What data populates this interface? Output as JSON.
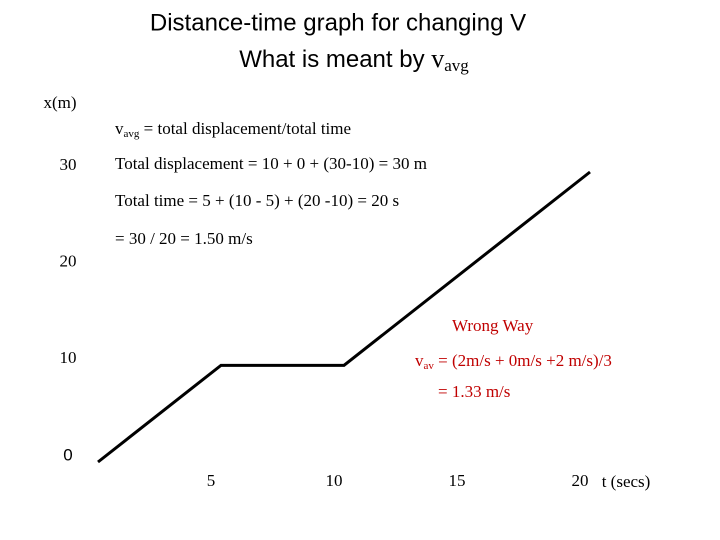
{
  "chart_data": {
    "type": "line",
    "title": "Distance-time graph for changing V",
    "subtitle": {
      "text": "What is meant by ",
      "symbol": "v",
      "sub": "avg"
    },
    "y_label": "x(m)",
    "x_label": "t (secs)",
    "x": [
      0,
      5,
      10,
      20
    ],
    "series": [
      {
        "color": "#000000",
        "values": [
          0,
          10,
          10,
          30
        ]
      }
    ],
    "xlim": [
      0,
      20
    ],
    "ylim": [
      0,
      30
    ],
    "xticks": [
      5,
      10,
      15,
      20
    ],
    "yticks": [
      0,
      10,
      20,
      30
    ],
    "annotations": [
      {
        "text": "v",
        "sub": "avg",
        "rest": " = total displacement/total time",
        "color": "#000000"
      },
      {
        "text": "Total displacement = 10 + 0 + (30-10) = 30 m",
        "color": "#000000"
      },
      {
        "text": "Total time = 5 + (10 - 5) + (20 -10) =  20 s",
        "color": "#000000"
      },
      {
        "text": "= 30 / 20 = 1.50 m/s",
        "color": "#000000"
      },
      {
        "text": "Wrong Way",
        "color": "#c00000"
      },
      {
        "text": "v",
        "sub": "av",
        "rest": " = (2m/s + 0m/s +2 m/s)/3",
        "color": "#c00000"
      },
      {
        "text": "= 1.33 m/s",
        "color": "#c00000"
      }
    ]
  }
}
